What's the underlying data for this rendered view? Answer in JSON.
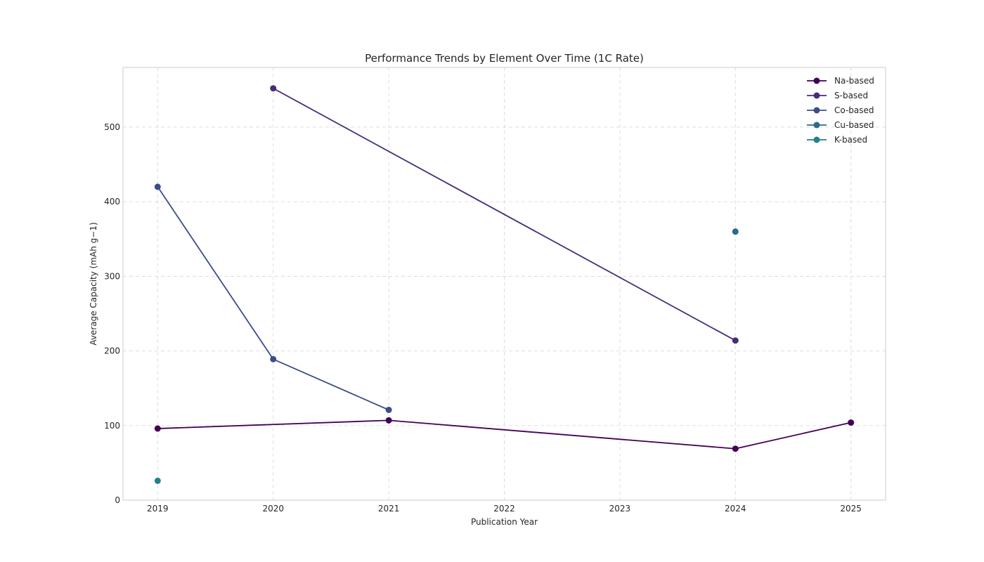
{
  "chart_data": {
    "type": "line",
    "title": "Performance Trends by Element Over Time (1C Rate)",
    "xlabel": "Publication Year",
    "ylabel": "Average Capacity (mAh g−1)",
    "xlim": [
      2018.7,
      2025.3
    ],
    "ylim": [
      0,
      580
    ],
    "x_ticks": [
      2019,
      2020,
      2021,
      2022,
      2023,
      2024,
      2025
    ],
    "y_ticks": [
      0,
      100,
      200,
      300,
      400,
      500
    ],
    "grid": true,
    "legend_position": "top-right",
    "series": [
      {
        "name": "Na-based",
        "color": "#440154",
        "points": [
          [
            2019,
            96
          ],
          [
            2021,
            107
          ],
          [
            2024,
            69
          ],
          [
            2025,
            104
          ]
        ]
      },
      {
        "name": "S-based",
        "color": "#472c7a",
        "points": [
          [
            2020,
            552
          ],
          [
            2024,
            214
          ]
        ]
      },
      {
        "name": "Co-based",
        "color": "#3b4d8a",
        "points": [
          [
            2019,
            420
          ],
          [
            2020,
            189
          ],
          [
            2021,
            121
          ]
        ]
      },
      {
        "name": "Cu-based",
        "color": "#2c6a8e",
        "points": [
          [
            2024,
            360
          ]
        ]
      },
      {
        "name": "K-based",
        "color": "#21818c",
        "points": [
          [
            2019,
            26
          ]
        ]
      }
    ]
  }
}
